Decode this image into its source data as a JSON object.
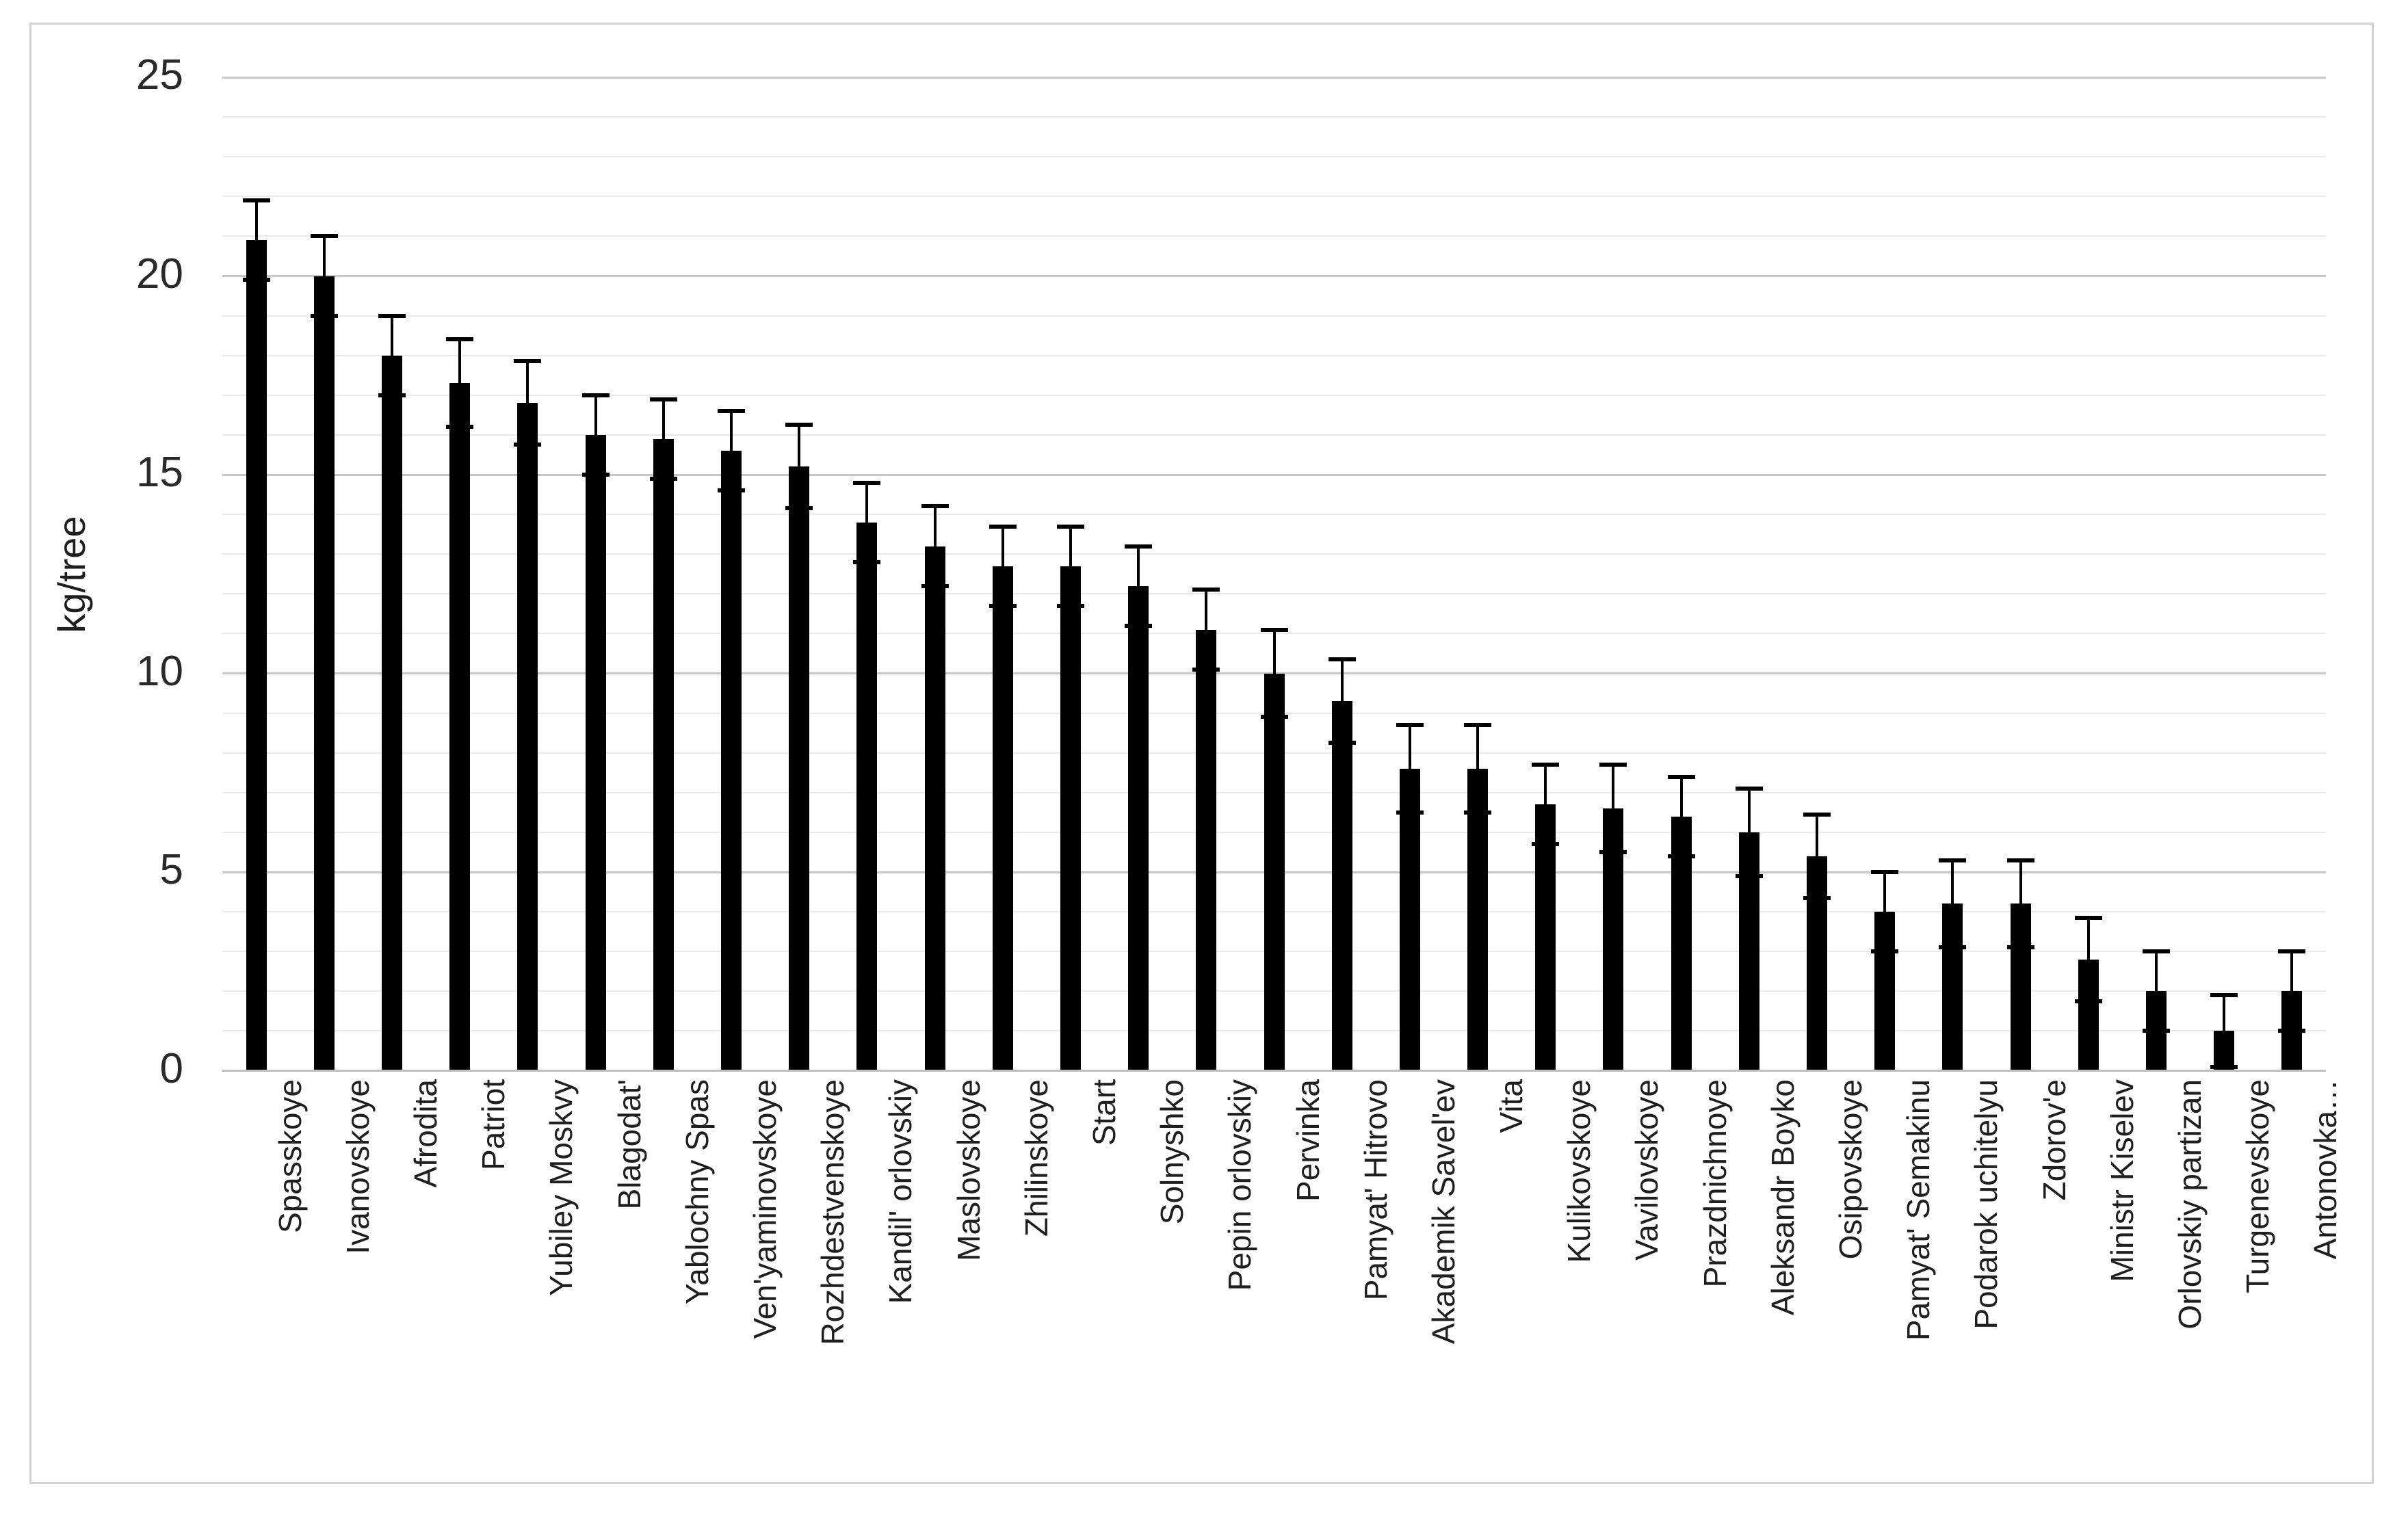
{
  "figure": {
    "background_color": "#ffffff",
    "frame_border_color": "#d2d2d2",
    "bar_color": "#000000",
    "minor_gridline_color": "#e9e9e9",
    "major_gridline_color": "#c7c7c7",
    "text_color": "#1f1f1f"
  },
  "chart_data": {
    "type": "bar",
    "title": "",
    "xlabel": "",
    "ylabel": "kg/tree",
    "ylim": [
      0,
      25
    ],
    "yticks": [
      0,
      5,
      10,
      15,
      20,
      25
    ],
    "ytick_minor_interval": 1,
    "grid": "horizontal, minor every 1, major every 5",
    "legend": "none",
    "error_bars": "symmetric, caps, black",
    "categories": [
      "Spasskoye",
      "Ivanovskoye",
      "Afrodita",
      "Patriot",
      "Yubiley Moskvy",
      "Blagodat'",
      "Yablochny Spas",
      "Ven'yaminovskoye",
      "Rozhdestvenskoye",
      "Kandil' orlovskiy",
      "Maslovskoye",
      "Zhilinskoye",
      "Start",
      "Solnyshko",
      "Pepin orlovskiy",
      "Pervinka",
      "Pamyat' Hitrovo",
      "Akademik Savel'ev",
      "Vita",
      "Kulikovskoye",
      "Vavilovskoye",
      "Prazdnichnoye",
      "Aleksandr Boyko",
      "Osipovskoye",
      "Pamyat' Semakinu",
      "Podarok uchitelyu",
      "Zdorov'e",
      "Ministr Kiselev",
      "Orlovskiy partizan",
      "Turgenevskoye",
      "Antonovka…"
    ],
    "values": [
      20.9,
      20.0,
      18.0,
      17.3,
      16.8,
      16.0,
      15.9,
      15.6,
      15.2,
      13.8,
      13.2,
      12.7,
      12.7,
      12.2,
      11.1,
      10.0,
      9.3,
      7.6,
      7.6,
      6.7,
      6.6,
      6.4,
      6.0,
      5.4,
      4.0,
      4.2,
      4.2,
      2.8,
      2.0,
      1.0,
      2.0
    ],
    "errors": [
      1.0,
      1.0,
      1.0,
      1.1,
      1.05,
      1.0,
      1.0,
      1.0,
      1.05,
      1.0,
      1.0,
      1.0,
      1.0,
      1.0,
      1.0,
      1.1,
      1.05,
      1.1,
      1.1,
      1.0,
      1.1,
      1.0,
      1.1,
      1.05,
      1.0,
      1.1,
      1.1,
      1.05,
      1.0,
      0.9,
      1.0
    ]
  }
}
